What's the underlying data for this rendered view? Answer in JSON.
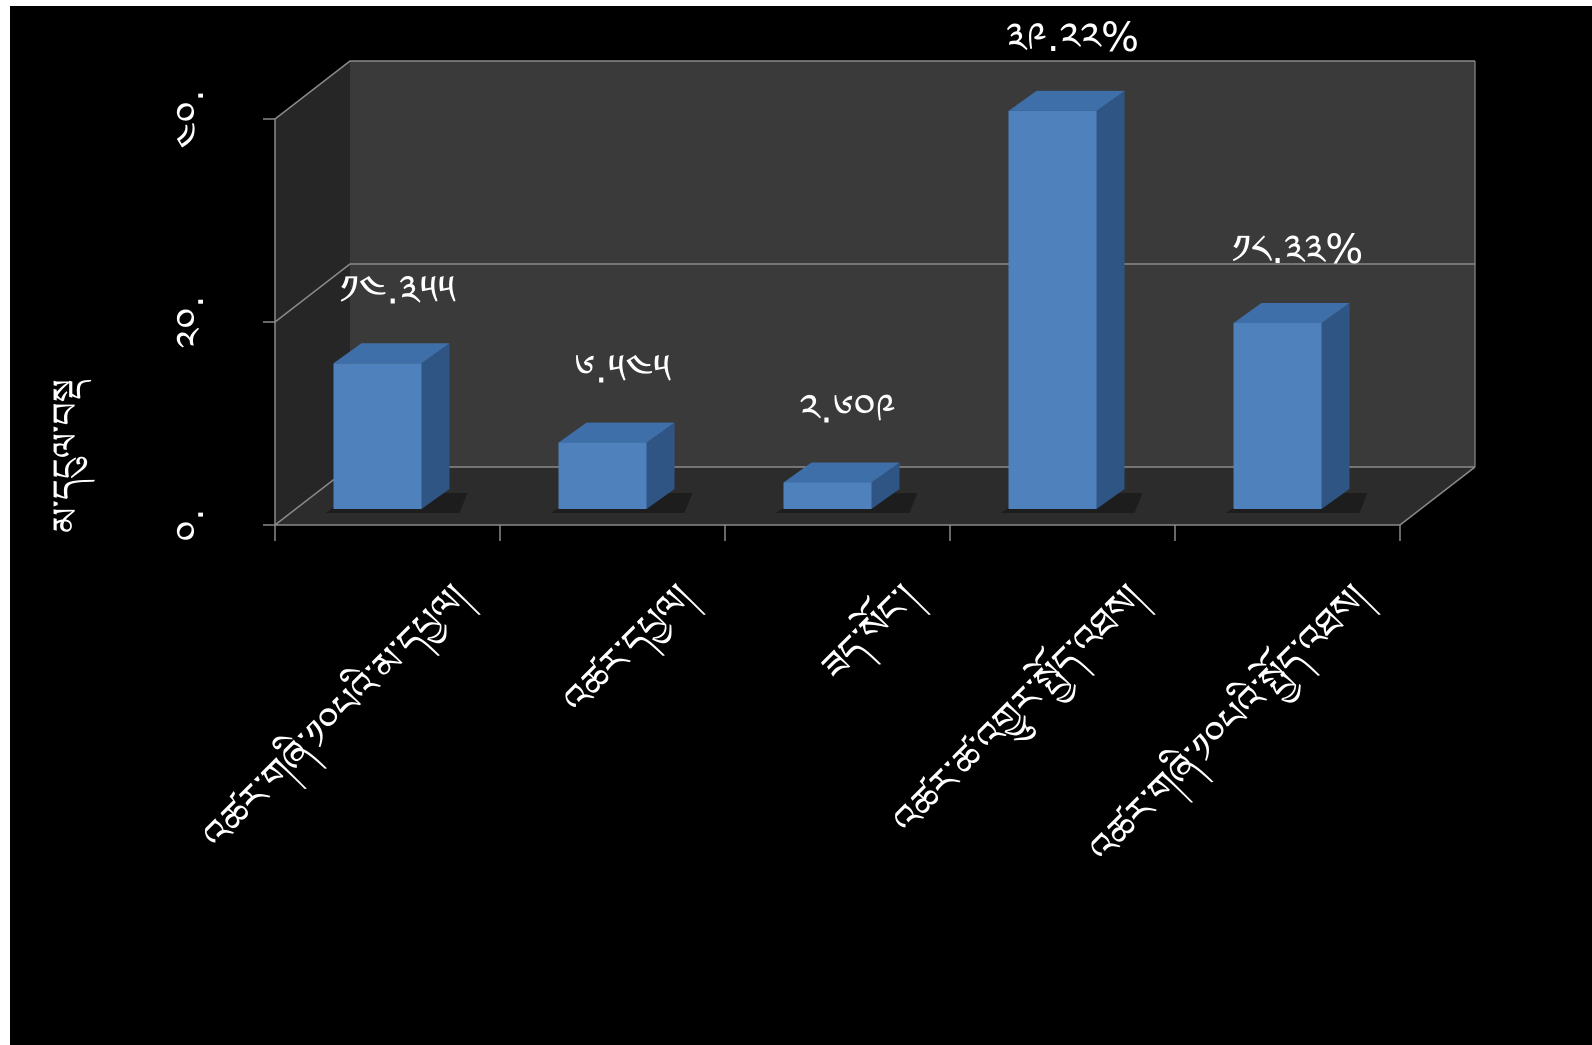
{
  "chart_data": {
    "type": "bar",
    "categories": [
      "འཚར་གཞི་༡༠པའི་མ་དཔྱལ།",
      "འཚར་དཔྱལ།",
      "ཟད་སོང་།",
      "འཚར་ཚ་འགྱུར་སྤྱོད་འཐས།",
      "འཚར་གཞི་༡༠པའི་སྤྱོད་འཐས།"
    ],
    "values": [
      14.355,
      6.545,
      2.609,
      39.22,
      18.33
    ],
    "data_labels": [
      "༡༤.༣༥༥",
      "༦.༥༤༥",
      "༢.༦༠༩",
      "༣༩.༢༢%",
      "༡༨.༣༣%"
    ],
    "y_ticks": [
      0,
      20,
      40
    ],
    "y_tick_labels": [
      "༠.",
      "༢༠.",
      "༤༠."
    ],
    "ylabel": "མ་དངུལ་བསྡ",
    "ylim": [
      0,
      40
    ],
    "grid": true,
    "three_d": true,
    "colors": {
      "background": "#000000",
      "bar_front": "#4f81bd",
      "bar_top": "#3f6fa8",
      "bar_side": "#2f5584",
      "back_wall": "#3a3a3a",
      "side_wall": "#262626",
      "floor": "#2c2c2c",
      "gridline": "#8a8a8a",
      "text": "#ffffff"
    }
  }
}
